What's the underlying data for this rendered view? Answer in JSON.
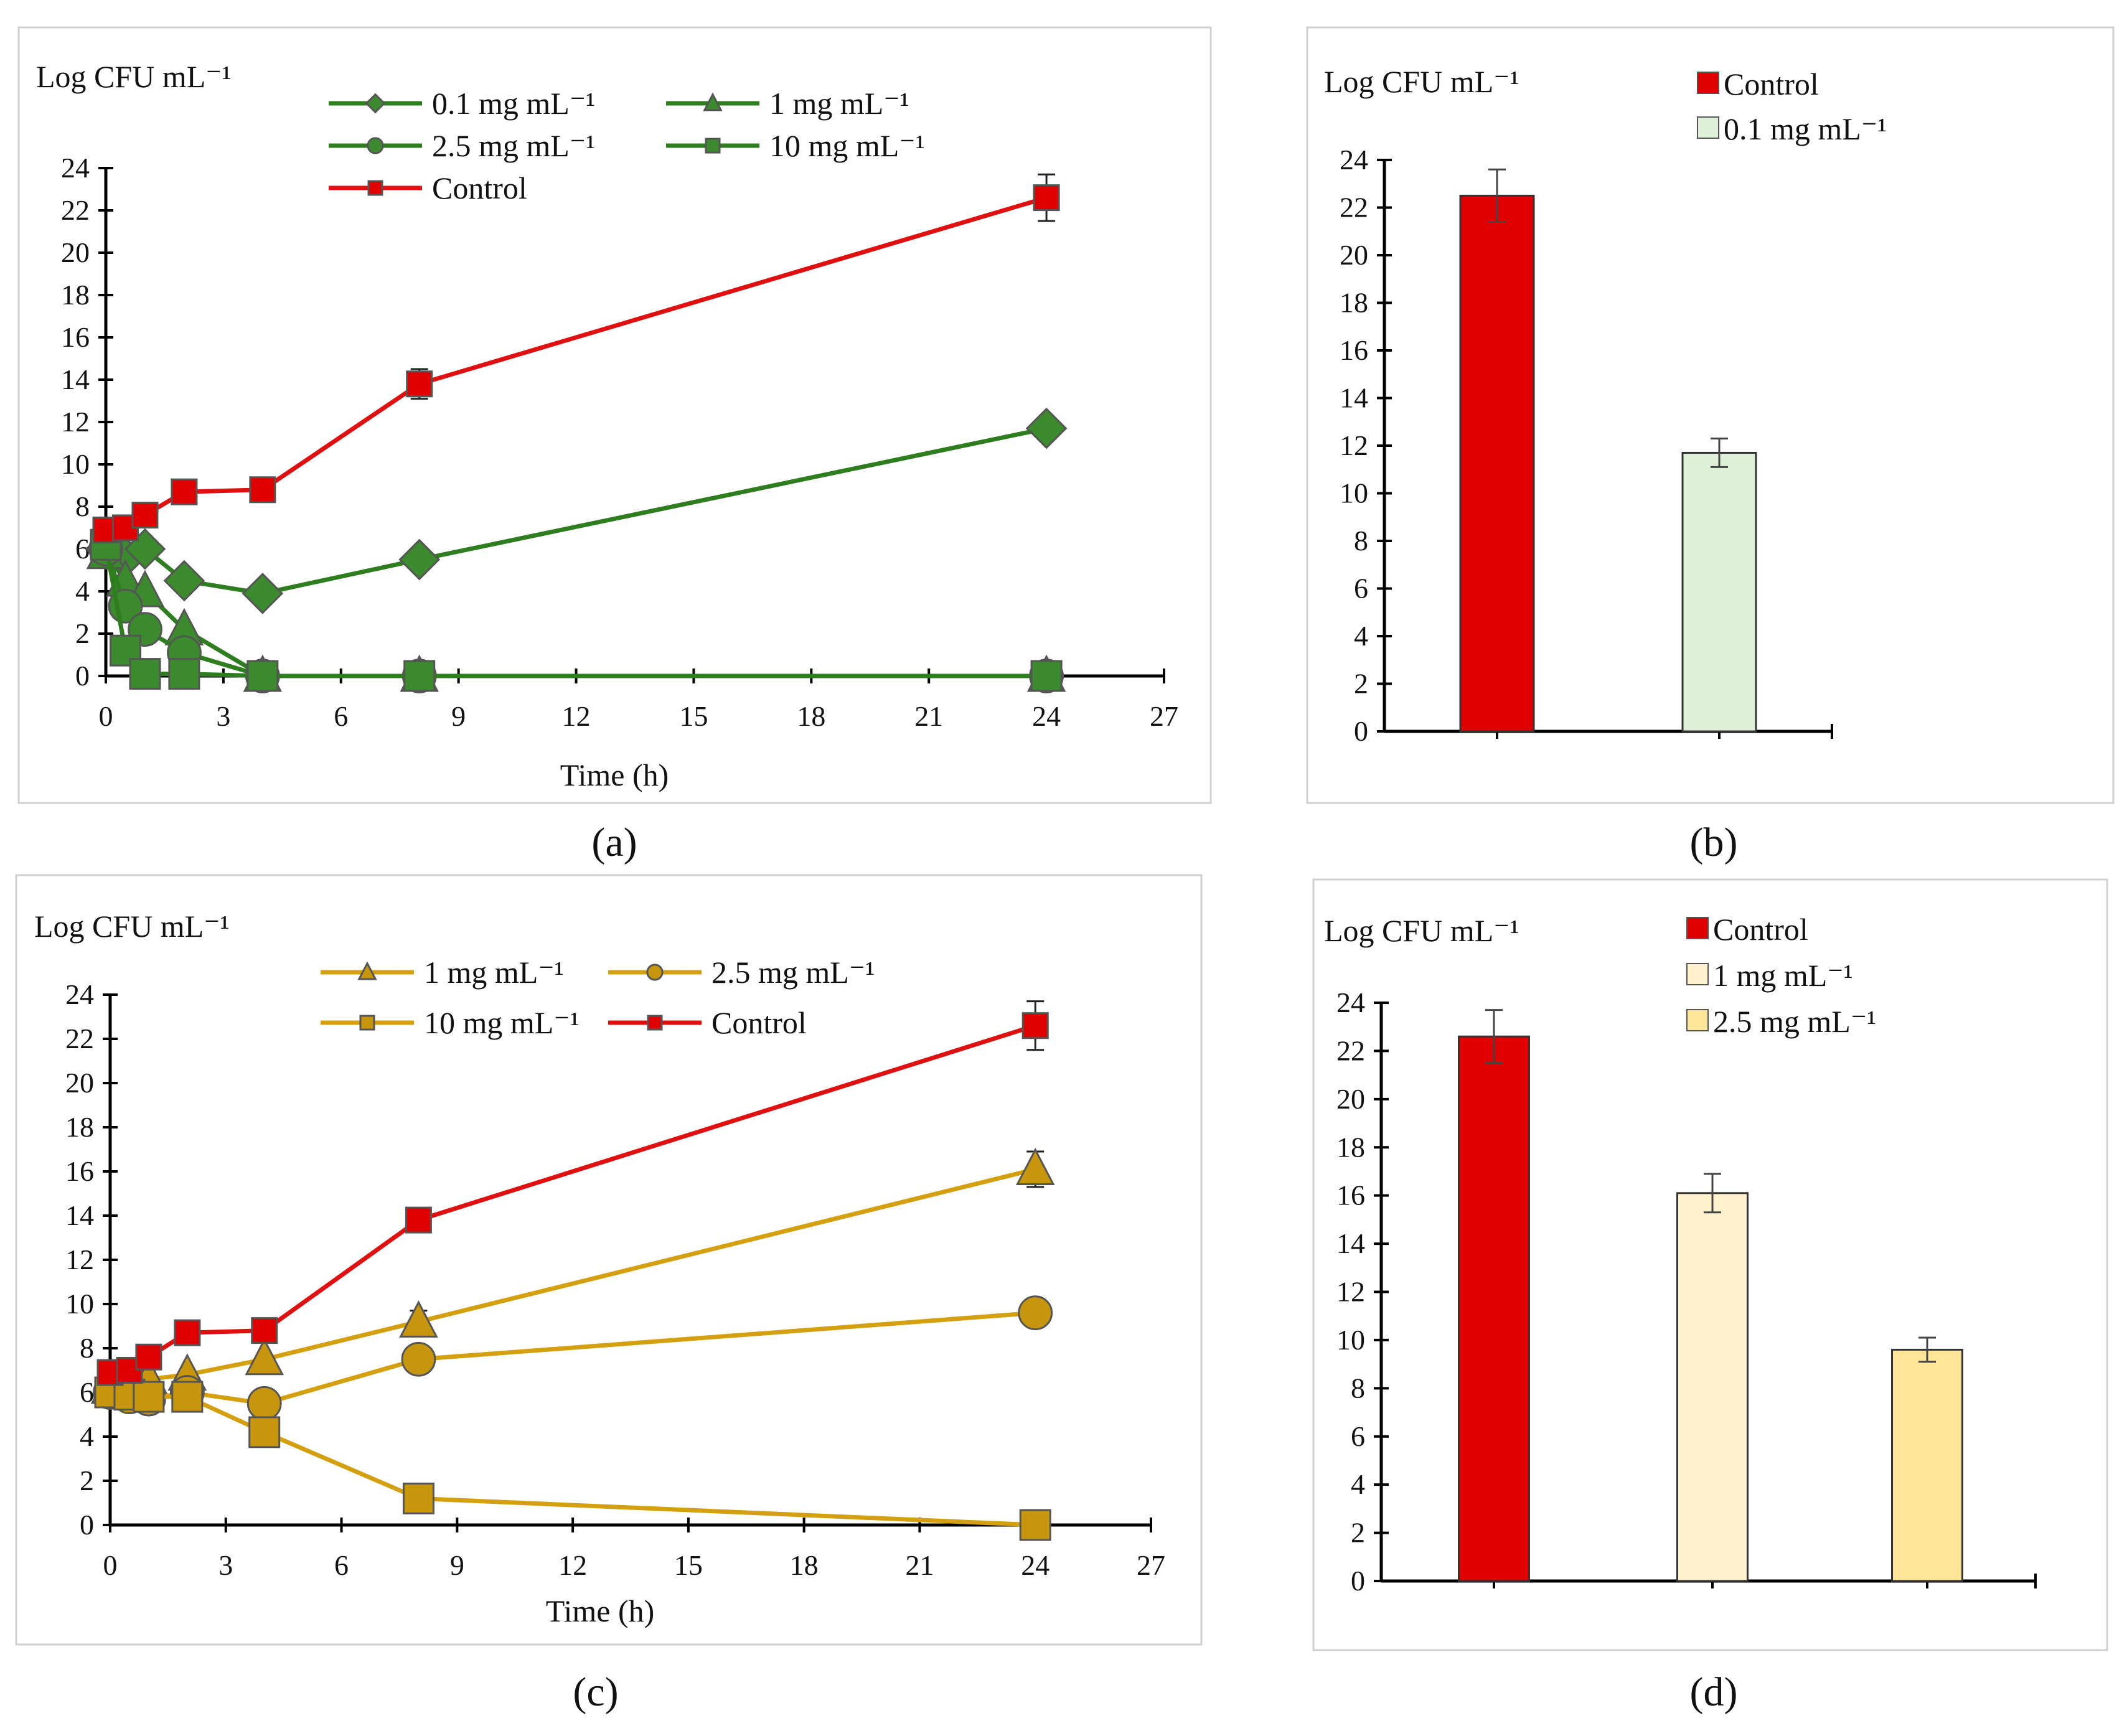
{
  "chart_data": [
    {
      "id": "a",
      "panel_label": "(a)",
      "type": "line",
      "ylabel": "Log CFU mL⁻¹",
      "xlabel": "Time (h)",
      "xlim": [
        0,
        27
      ],
      "ylim": [
        0,
        24
      ],
      "xticks": [
        0,
        3,
        6,
        9,
        12,
        15,
        18,
        21,
        24,
        27
      ],
      "yticks": [
        0,
        2,
        4,
        6,
        8,
        10,
        12,
        14,
        16,
        18,
        20,
        22,
        24
      ],
      "x": [
        0,
        0.5,
        1,
        2,
        4,
        8,
        24
      ],
      "legend_columns": 2,
      "series": [
        {
          "name": "0.1 mg mL⁻¹",
          "marker": "diamond",
          "color": "#2e7d1f",
          "fill": "#3b8a2e",
          "values": [
            6.0,
            5.6,
            6.0,
            4.5,
            3.9,
            5.5,
            11.7
          ],
          "errors": [
            0,
            0,
            0,
            0,
            0,
            0,
            0.5
          ]
        },
        {
          "name": "1 mg mL⁻¹",
          "marker": "triangle",
          "color": "#2e7d1f",
          "fill": "#3b8a2e",
          "values": [
            5.8,
            4.5,
            4.0,
            2.2,
            0,
            0,
            0
          ],
          "errors": [
            0,
            0,
            0,
            0,
            0,
            0,
            0
          ]
        },
        {
          "name": "2.5 mg mL⁻¹",
          "marker": "circle",
          "color": "#2e7d1f",
          "fill": "#3b8a2e",
          "values": [
            6.0,
            3.3,
            2.2,
            1.1,
            0,
            0,
            0
          ],
          "errors": [
            0,
            0,
            0,
            0,
            0,
            0,
            0
          ]
        },
        {
          "name": "10 mg mL⁻¹",
          "marker": "square",
          "color": "#2e7d1f",
          "fill": "#3b8a2e",
          "values": [
            6.2,
            1.2,
            0.1,
            0.1,
            0,
            0,
            0
          ],
          "errors": [
            0,
            0,
            0,
            0,
            0,
            0,
            0
          ]
        },
        {
          "name": "Control",
          "marker": "square",
          "color": "#e01010",
          "fill": "#e00000",
          "values": [
            6.9,
            7.0,
            7.6,
            8.7,
            8.8,
            13.8,
            22.6
          ],
          "errors": [
            0,
            0,
            0,
            0,
            0,
            0.7,
            1.1
          ]
        }
      ]
    },
    {
      "id": "b",
      "panel_label": "(b)",
      "type": "bar",
      "ylabel": "Log CFU mL⁻¹",
      "ylim": [
        0,
        24
      ],
      "yticks": [
        0,
        2,
        4,
        6,
        8,
        10,
        12,
        14,
        16,
        18,
        20,
        22,
        24
      ],
      "categories": [
        "Control",
        "0.1 mg mL⁻¹"
      ],
      "values": [
        22.5,
        11.7
      ],
      "errors": [
        1.1,
        0.6
      ],
      "colors": [
        "#e00000",
        "#dff0d8"
      ]
    },
    {
      "id": "c",
      "panel_label": "(c)",
      "type": "line",
      "ylabel": "Log CFU mL⁻¹",
      "xlabel": "Time (h)",
      "xlim": [
        0,
        27
      ],
      "ylim": [
        0,
        24
      ],
      "xticks": [
        0,
        3,
        6,
        9,
        12,
        15,
        18,
        21,
        24,
        27
      ],
      "yticks": [
        0,
        2,
        4,
        6,
        8,
        10,
        12,
        14,
        16,
        18,
        20,
        22,
        24
      ],
      "x": [
        0,
        0.5,
        1,
        2,
        4,
        8,
        24
      ],
      "legend_columns": 2,
      "series": [
        {
          "name": "1 mg mL⁻¹",
          "marker": "triangle",
          "color": "#d4a010",
          "fill": "#c8960c",
          "values": [
            6.2,
            6.5,
            6.6,
            6.8,
            7.5,
            9.2,
            16.1
          ],
          "errors": [
            0,
            0,
            0,
            0,
            0,
            0.5,
            0.8
          ]
        },
        {
          "name": "2.5 mg mL⁻¹",
          "marker": "circle",
          "color": "#d4a010",
          "fill": "#c8960c",
          "values": [
            6.0,
            5.8,
            5.7,
            6.0,
            5.5,
            7.5,
            9.6
          ],
          "errors": [
            0,
            0,
            0,
            0,
            0,
            0,
            0
          ]
        },
        {
          "name": "10 mg mL⁻¹",
          "marker": "square",
          "color": "#d4a010",
          "fill": "#c8960c",
          "values": [
            6.0,
            5.9,
            5.8,
            5.8,
            4.2,
            1.2,
            0
          ],
          "errors": [
            0,
            0,
            0,
            0,
            0,
            0,
            0
          ]
        },
        {
          "name": "Control",
          "marker": "square",
          "color": "#e01010",
          "fill": "#e00000",
          "values": [
            6.9,
            7.0,
            7.6,
            8.7,
            8.8,
            13.8,
            22.6
          ],
          "errors": [
            0,
            0,
            0,
            0,
            0,
            0.4,
            1.1
          ]
        }
      ]
    },
    {
      "id": "d",
      "panel_label": "(d)",
      "type": "bar",
      "ylabel": "Log CFU mL⁻¹",
      "ylim": [
        0,
        24
      ],
      "yticks": [
        0,
        2,
        4,
        6,
        8,
        10,
        12,
        14,
        16,
        18,
        20,
        22,
        24
      ],
      "categories": [
        "Control",
        "1 mg mL⁻¹",
        "2.5 mg mL⁻¹"
      ],
      "values": [
        22.6,
        16.1,
        9.6
      ],
      "errors": [
        1.1,
        0.8,
        0.5
      ],
      "colors": [
        "#e00000",
        "#fff2cc",
        "#ffe699"
      ]
    }
  ]
}
